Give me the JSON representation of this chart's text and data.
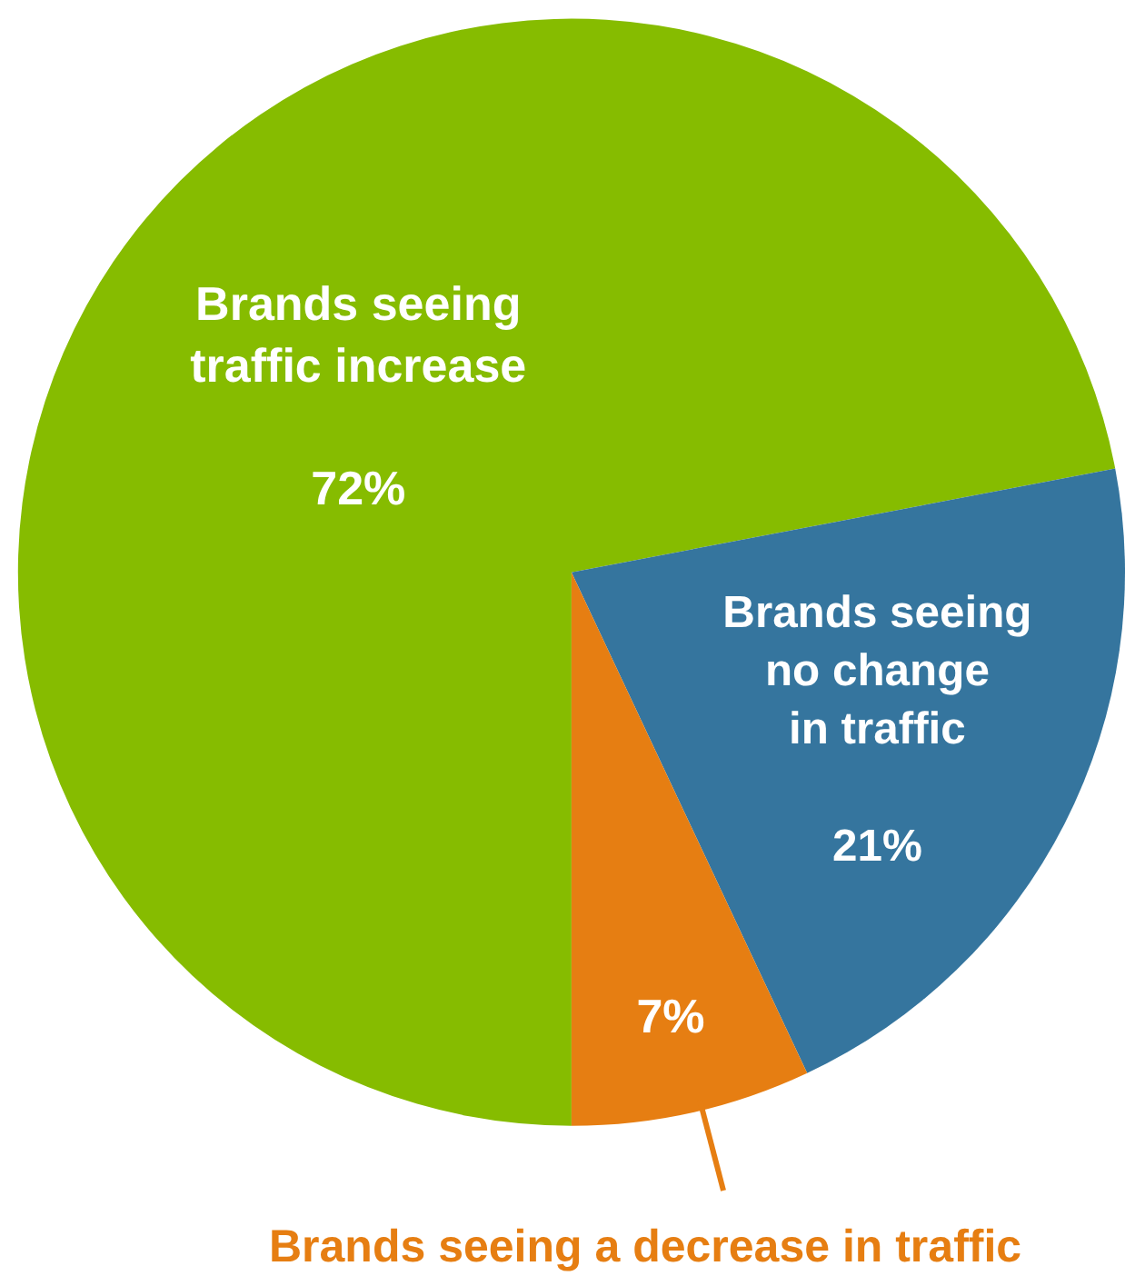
{
  "chart_data": {
    "type": "pie",
    "categories": [
      "Brands seeing\ntraffic increase",
      "Brands seeing\nno change\nin traffic",
      "Brands seeing a decrease in traffic"
    ],
    "values": [
      72,
      21,
      7
    ],
    "colors": [
      "#86bc00",
      "#35759e",
      "#e67e12"
    ],
    "value_labels": [
      "72%",
      "21%",
      "7%"
    ],
    "legend": false
  }
}
